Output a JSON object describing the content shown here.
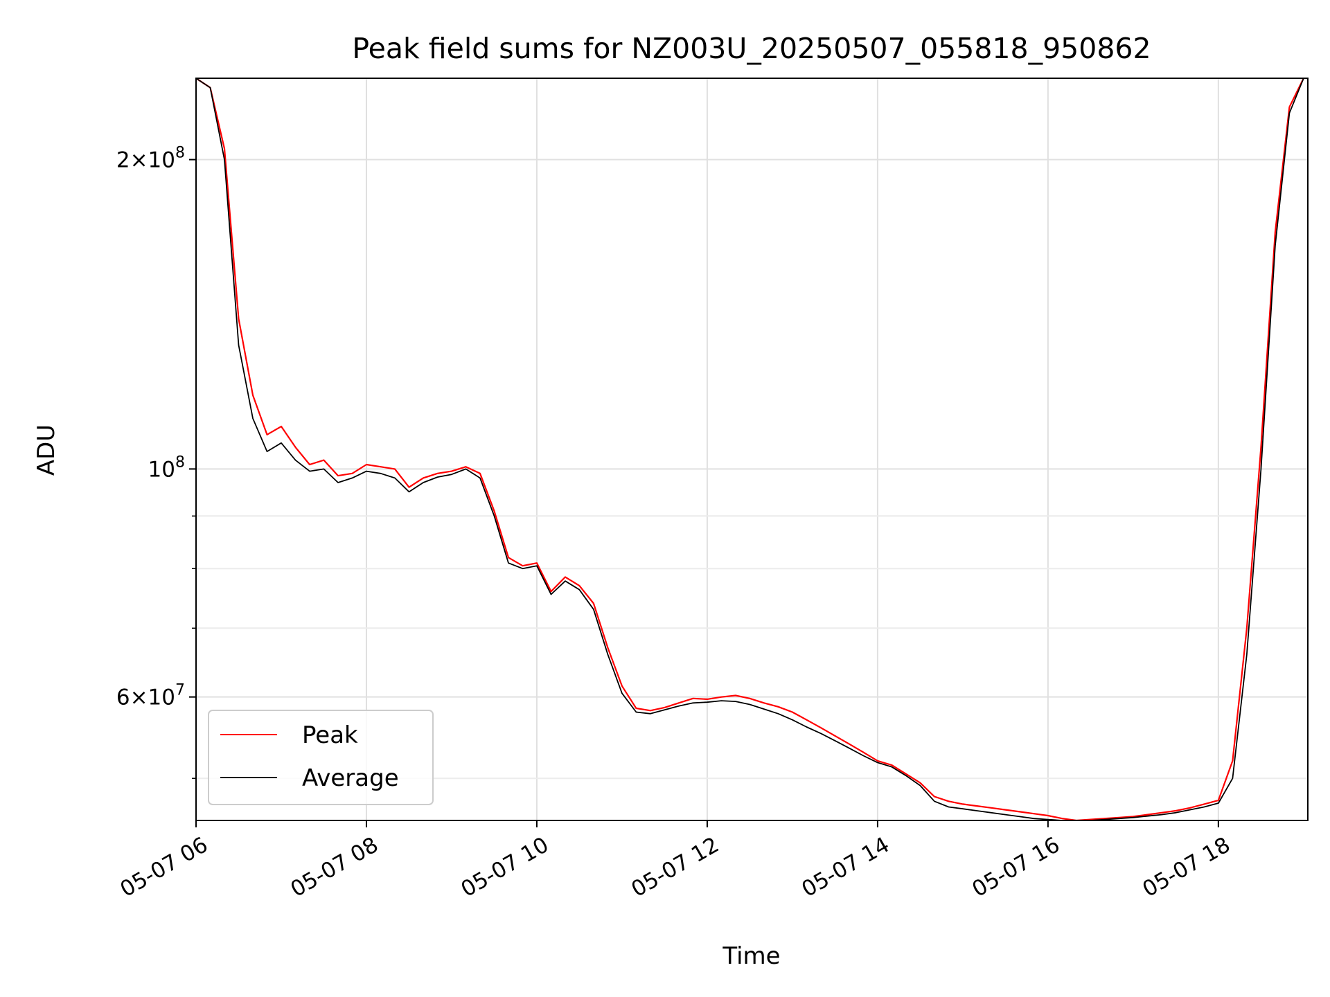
{
  "chart_data": {
    "type": "line",
    "title": "Peak field sums for NZ003U_20250507_055818_950862",
    "xlabel": "Time",
    "ylabel": "ADU",
    "y_scale": "log",
    "ylim": [
      45500000,
      240000000
    ],
    "xlim": [
      "2025-05-07 06:00",
      "2025-05-07 19:03"
    ],
    "x_tick_labels": [
      "05-07 06",
      "05-07 08",
      "05-07 10",
      "05-07 12",
      "05-07 14",
      "05-07 16",
      "05-07 18"
    ],
    "x_tick_values": [
      "2025-05-07 06:00",
      "2025-05-07 08:00",
      "2025-05-07 10:00",
      "2025-05-07 12:00",
      "2025-05-07 14:00",
      "2025-05-07 16:00",
      "2025-05-07 18:00"
    ],
    "y_tick_labels": [
      {
        "mantissa": "2",
        "exponent": "8",
        "value": 200000000
      },
      {
        "mantissa": "",
        "exponent": "8",
        "value": 100000000
      },
      {
        "mantissa": "6",
        "exponent": "7",
        "value": 60000000
      }
    ],
    "grid": true,
    "legend_position": "lower-left",
    "colors": {
      "Peak": "#ff0000",
      "Average": "#000000"
    },
    "x": [
      "2025-05-07 06:00",
      "2025-05-07 06:10",
      "2025-05-07 06:20",
      "2025-05-07 06:30",
      "2025-05-07 06:40",
      "2025-05-07 06:50",
      "2025-05-07 07:00",
      "2025-05-07 07:10",
      "2025-05-07 07:20",
      "2025-05-07 07:30",
      "2025-05-07 07:40",
      "2025-05-07 07:50",
      "2025-05-07 08:00",
      "2025-05-07 08:10",
      "2025-05-07 08:20",
      "2025-05-07 08:30",
      "2025-05-07 08:40",
      "2025-05-07 08:50",
      "2025-05-07 09:00",
      "2025-05-07 09:10",
      "2025-05-07 09:20",
      "2025-05-07 09:30",
      "2025-05-07 09:40",
      "2025-05-07 09:50",
      "2025-05-07 10:00",
      "2025-05-07 10:10",
      "2025-05-07 10:20",
      "2025-05-07 10:30",
      "2025-05-07 10:40",
      "2025-05-07 10:50",
      "2025-05-07 11:00",
      "2025-05-07 11:10",
      "2025-05-07 11:20",
      "2025-05-07 11:30",
      "2025-05-07 11:40",
      "2025-05-07 11:50",
      "2025-05-07 12:00",
      "2025-05-07 12:10",
      "2025-05-07 12:20",
      "2025-05-07 12:30",
      "2025-05-07 12:40",
      "2025-05-07 12:50",
      "2025-05-07 13:00",
      "2025-05-07 13:10",
      "2025-05-07 13:20",
      "2025-05-07 13:30",
      "2025-05-07 13:40",
      "2025-05-07 13:50",
      "2025-05-07 14:00",
      "2025-05-07 14:10",
      "2025-05-07 14:20",
      "2025-05-07 14:30",
      "2025-05-07 14:40",
      "2025-05-07 14:50",
      "2025-05-07 15:00",
      "2025-05-07 15:10",
      "2025-05-07 15:20",
      "2025-05-07 15:30",
      "2025-05-07 15:40",
      "2025-05-07 15:50",
      "2025-05-07 16:00",
      "2025-05-07 16:10",
      "2025-05-07 16:20",
      "2025-05-07 16:30",
      "2025-05-07 16:40",
      "2025-05-07 16:50",
      "2025-05-07 17:00",
      "2025-05-07 17:10",
      "2025-05-07 17:20",
      "2025-05-07 17:30",
      "2025-05-07 17:40",
      "2025-05-07 17:50",
      "2025-05-07 18:00",
      "2025-05-07 18:10",
      "2025-05-07 18:20",
      "2025-05-07 18:30",
      "2025-05-07 18:40",
      "2025-05-07 18:50",
      "2025-05-07 19:00"
    ],
    "series": [
      {
        "name": "Peak",
        "color": "#ff0000",
        "values": [
          240000000,
          235000000,
          205000000,
          140000000,
          118000000,
          108000000,
          110000000,
          105000000,
          101000000,
          102000000,
          98500000,
          99000000,
          101000000,
          100500000,
          100000000,
          96000000,
          98000000,
          99000000,
          99500000,
          100500000,
          99000000,
          91000000,
          82000000,
          80500000,
          81000000,
          76000000,
          78500000,
          77000000,
          74000000,
          67000000,
          61500000,
          58500000,
          58200000,
          58600000,
          59200000,
          59800000,
          59700000,
          60000000,
          60200000,
          59800000,
          59200000,
          58700000,
          58000000,
          57000000,
          56000000,
          55000000,
          54000000,
          53000000,
          52000000,
          51500000,
          50500000,
          49500000,
          48000000,
          47500000,
          47200000,
          47000000,
          46800000,
          46600000,
          46400000,
          46200000,
          46000000,
          45700000,
          45500000,
          45600000,
          45700000,
          45800000,
          45900000,
          46100000,
          46300000,
          46500000,
          46800000,
          47200000,
          47600000,
          52000000,
          70000000,
          105000000,
          170000000,
          225000000,
          240000000
        ]
      },
      {
        "name": "Average",
        "color": "#000000",
        "values": [
          240000000,
          235000000,
          200000000,
          132000000,
          112000000,
          104000000,
          106000000,
          102000000,
          99500000,
          100000000,
          97000000,
          98000000,
          99500000,
          99000000,
          98000000,
          95000000,
          97000000,
          98200000,
          98800000,
          100000000,
          98000000,
          90000000,
          81000000,
          80000000,
          80500000,
          75500000,
          77800000,
          76300000,
          73000000,
          66000000,
          60500000,
          58000000,
          57800000,
          58300000,
          58800000,
          59200000,
          59300000,
          59500000,
          59400000,
          59000000,
          58400000,
          57800000,
          57000000,
          56100000,
          55300000,
          54400000,
          53500000,
          52600000,
          51800000,
          51300000,
          50300000,
          49200000,
          47500000,
          46900000,
          46700000,
          46500000,
          46300000,
          46100000,
          45900000,
          45700000,
          45600000,
          45500000,
          45450000,
          45500000,
          45600000,
          45700000,
          45800000,
          45950000,
          46100000,
          46300000,
          46600000,
          46900000,
          47300000,
          50000000,
          66000000,
          100000000,
          165000000,
          222000000,
          240000000
        ]
      }
    ]
  },
  "legend": {
    "peak_label": "Peak",
    "average_label": "Average"
  }
}
